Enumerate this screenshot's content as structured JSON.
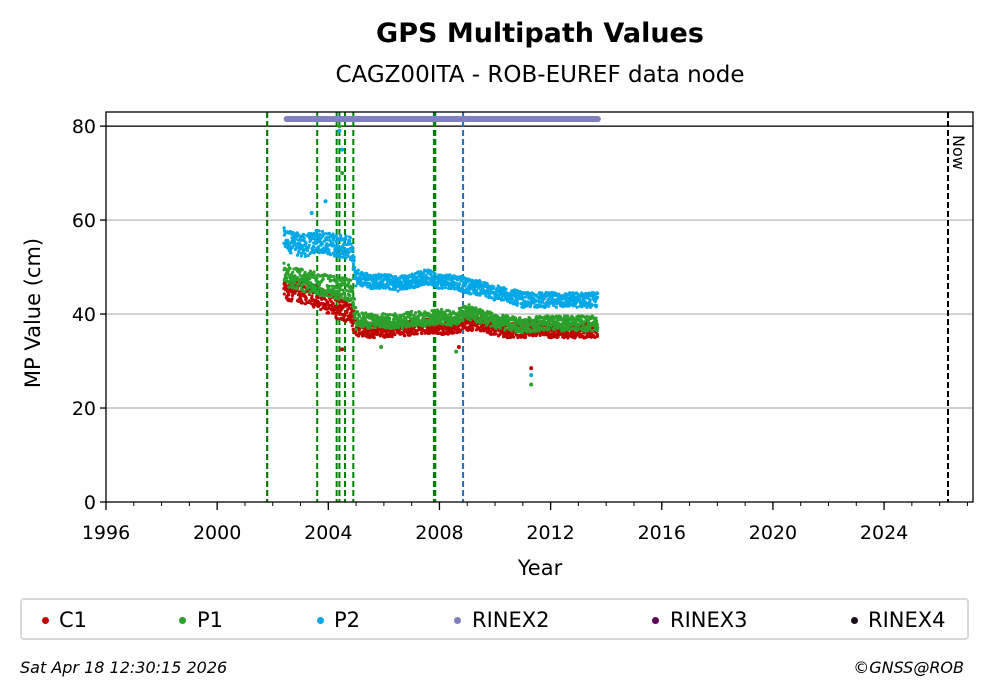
{
  "footer": {
    "timestamp": "Sat Apr 18 12:30:15 2026",
    "credit": "©GNSS@ROB"
  },
  "chart_data": {
    "type": "scatter",
    "title": "GPS Multipath Values",
    "subtitle": "CAGZ00ITA - ROB-EUREF data node",
    "xlabel": "Year",
    "ylabel": "MP Value (cm)",
    "xlim": [
      1996,
      2027.2
    ],
    "ylim": [
      0,
      83
    ],
    "xticks": [
      1996,
      2000,
      2004,
      2008,
      2012,
      2016,
      2020,
      2024
    ],
    "yticks": [
      0,
      20,
      40,
      60,
      80
    ],
    "grid": "horizontal",
    "legend_position": "bottom",
    "reference_line_y": 80,
    "now_label": "Now",
    "now_year": 2026.3,
    "series": [
      {
        "name": "C1",
        "color": "#c00000",
        "points": [
          [
            2002.4,
            45.5
          ],
          [
            2002.8,
            45
          ],
          [
            2003.2,
            44.5
          ],
          [
            2003.6,
            43.5
          ],
          [
            2004.0,
            42.5
          ],
          [
            2004.4,
            41
          ],
          [
            2004.8,
            40.5
          ],
          [
            2005.0,
            37
          ],
          [
            2005.5,
            36.5
          ],
          [
            2006.0,
            36.5
          ],
          [
            2006.5,
            37
          ],
          [
            2007.0,
            37
          ],
          [
            2007.5,
            37.5
          ],
          [
            2008.0,
            37
          ],
          [
            2008.5,
            37.5
          ],
          [
            2009.0,
            38
          ],
          [
            2009.5,
            38
          ],
          [
            2010.0,
            37
          ],
          [
            2010.5,
            36.5
          ],
          [
            2011.0,
            36.5
          ],
          [
            2011.5,
            37
          ],
          [
            2012.0,
            36.5
          ],
          [
            2012.5,
            36.5
          ],
          [
            2013.0,
            36.5
          ],
          [
            2013.7,
            36.5
          ]
        ],
        "outliers": [
          [
            2004.5,
            32.5
          ],
          [
            2008.7,
            33
          ],
          [
            2011.3,
            28.5
          ]
        ]
      },
      {
        "name": "P1",
        "color": "#2ca02c",
        "points": [
          [
            2002.4,
            48.5
          ],
          [
            2002.8,
            47.5
          ],
          [
            2003.2,
            47
          ],
          [
            2003.6,
            46.5
          ],
          [
            2004.0,
            46
          ],
          [
            2004.4,
            45.5
          ],
          [
            2004.8,
            45
          ],
          [
            2005.0,
            39
          ],
          [
            2005.5,
            38.5
          ],
          [
            2006.0,
            38.5
          ],
          [
            2006.5,
            38.5
          ],
          [
            2007.0,
            39
          ],
          [
            2007.5,
            39
          ],
          [
            2008.0,
            39.5
          ],
          [
            2008.5,
            39
          ],
          [
            2009.0,
            40.5
          ],
          [
            2009.5,
            39.5
          ],
          [
            2010.0,
            38.5
          ],
          [
            2010.5,
            38
          ],
          [
            2011.0,
            37.5
          ],
          [
            2011.5,
            38
          ],
          [
            2012.0,
            38
          ],
          [
            2012.5,
            38
          ],
          [
            2013.0,
            38
          ],
          [
            2013.7,
            38
          ]
        ],
        "outliers": [
          [
            2004.4,
            80
          ],
          [
            2004.5,
            70
          ],
          [
            2005.9,
            33
          ],
          [
            2008.6,
            32
          ],
          [
            2011.3,
            25
          ]
        ]
      },
      {
        "name": "P2",
        "color": "#00a8e8",
        "points": [
          [
            2002.4,
            56
          ],
          [
            2002.8,
            55
          ],
          [
            2003.2,
            54.5
          ],
          [
            2003.6,
            55.5
          ],
          [
            2004.0,
            55
          ],
          [
            2004.4,
            54.5
          ],
          [
            2004.8,
            54
          ],
          [
            2005.0,
            48
          ],
          [
            2005.5,
            47
          ],
          [
            2006.0,
            47
          ],
          [
            2006.5,
            46.5
          ],
          [
            2007.0,
            47
          ],
          [
            2007.5,
            48
          ],
          [
            2008.0,
            47
          ],
          [
            2008.5,
            47
          ],
          [
            2009.0,
            46
          ],
          [
            2009.5,
            45.5
          ],
          [
            2010.0,
            44.5
          ],
          [
            2010.5,
            44
          ],
          [
            2011.0,
            43
          ],
          [
            2011.5,
            43
          ],
          [
            2012.0,
            43
          ],
          [
            2012.5,
            43
          ],
          [
            2013.0,
            43
          ],
          [
            2013.7,
            43
          ]
        ],
        "outliers": [
          [
            2003.4,
            61.5
          ],
          [
            2003.9,
            64
          ],
          [
            2004.4,
            79
          ],
          [
            2004.5,
            75
          ],
          [
            2011.3,
            27
          ]
        ]
      },
      {
        "name": "RINEX2",
        "color": "#8080bf",
        "range": [
          2002.5,
          2013.7
        ],
        "y": 81.5
      },
      {
        "name": "RINEX3",
        "color": "#5c005c"
      },
      {
        "name": "RINEX4",
        "color": "#1a0a1a"
      }
    ],
    "event_lines": [
      {
        "x": 2001.8,
        "color": "#d62728"
      },
      {
        "x": 2001.8,
        "color": "#008000"
      },
      {
        "x": 2003.6,
        "color": "#008000"
      },
      {
        "x": 2004.3,
        "color": "#008000"
      },
      {
        "x": 2004.4,
        "color": "#008000"
      },
      {
        "x": 2004.6,
        "color": "#008000"
      },
      {
        "x": 2004.9,
        "color": "#008000"
      },
      {
        "x": 2007.8,
        "color": "#008000"
      },
      {
        "x": 2007.85,
        "color": "#008000"
      },
      {
        "x": 2008.85,
        "color": "#1f6fbf"
      }
    ]
  }
}
